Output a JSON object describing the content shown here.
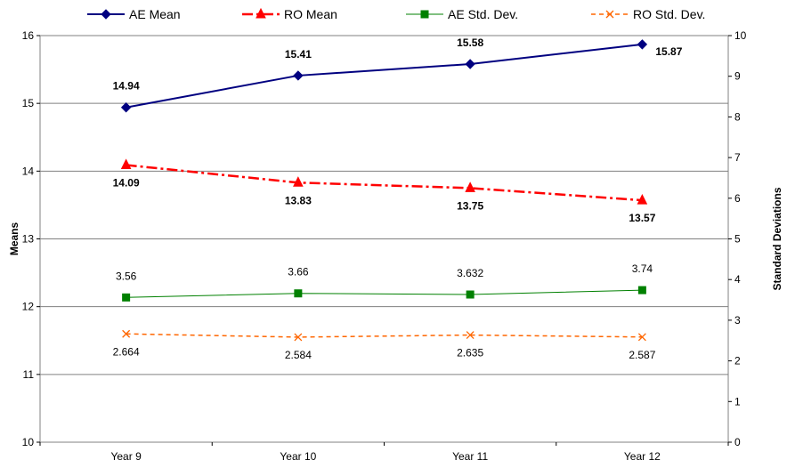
{
  "chart_data": {
    "type": "line",
    "title": "",
    "categories": [
      "Year 9",
      "Year 10",
      "Year 11",
      "Year 12"
    ],
    "y_left": {
      "label": "Means",
      "ylim": [
        10,
        16
      ],
      "ticks": [
        10,
        11,
        12,
        13,
        14,
        15,
        16
      ]
    },
    "y_right": {
      "label": "Standard Deviations",
      "ylim": [
        0,
        10
      ],
      "ticks": [
        0,
        1,
        2,
        3,
        4,
        5,
        6,
        7,
        8,
        9,
        10
      ]
    },
    "grid": true,
    "legend_position": "top",
    "series": [
      {
        "name": "AE Mean",
        "axis": "left",
        "values": [
          14.94,
          15.41,
          15.58,
          15.87
        ],
        "labels": [
          "14.94",
          "15.41",
          "15.58",
          "15.87"
        ],
        "color": "#000080",
        "marker": "diamond",
        "line": "solid",
        "label_bold": true
      },
      {
        "name": "RO Mean",
        "axis": "left",
        "values": [
          14.09,
          13.83,
          13.75,
          13.57
        ],
        "labels": [
          "14.09",
          "13.83",
          "13.75",
          "13.57"
        ],
        "color": "#ff0000",
        "marker": "triangle",
        "line": "dashdot",
        "label_bold": true
      },
      {
        "name": "AE Std. Dev.",
        "axis": "right",
        "values": [
          3.56,
          3.66,
          3.632,
          3.74
        ],
        "labels": [
          "3.56",
          "3.66",
          "3.632",
          "3.74"
        ],
        "color": "#008000",
        "marker": "square",
        "line": "solid",
        "label_bold": false
      },
      {
        "name": "RO Std. Dev.",
        "axis": "right",
        "values": [
          2.664,
          2.584,
          2.635,
          2.587
        ],
        "labels": [
          "2.664",
          "2.584",
          "2.635",
          "2.587"
        ],
        "color": "#ff6600",
        "marker": "x",
        "line": "dashed",
        "label_bold": false
      }
    ]
  }
}
